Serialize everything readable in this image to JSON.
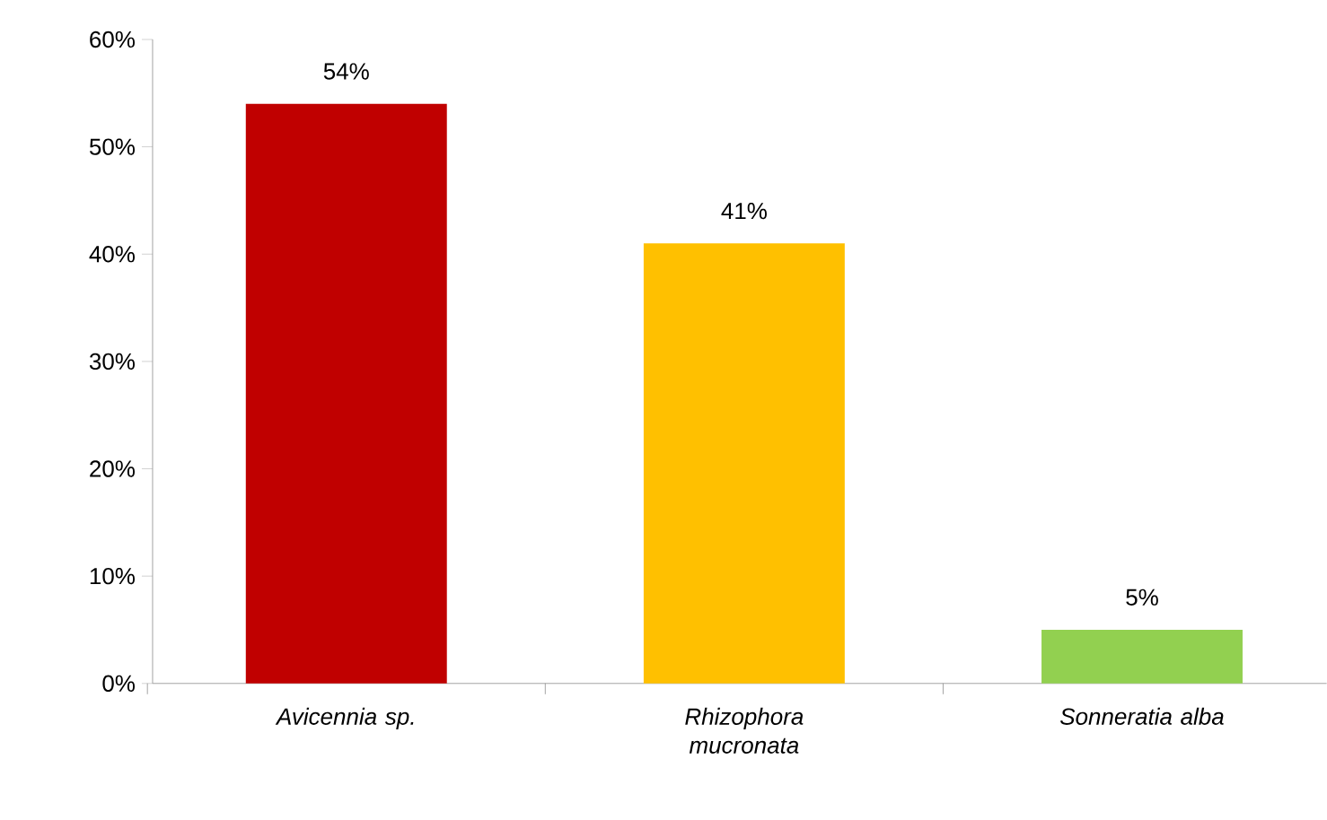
{
  "chart_data": {
    "type": "bar",
    "categories": [
      "Avicennia sp.",
      "Rhizophora mucronata",
      "Sonneratia alba"
    ],
    "values": [
      54,
      41,
      5
    ],
    "colors": [
      "#c00000",
      "#ffc000",
      "#92d050"
    ],
    "value_labels": [
      "54%",
      "41%",
      "5%"
    ],
    "ylim": [
      0,
      60
    ],
    "yticks": [
      {
        "value": 0,
        "label": "0%"
      },
      {
        "value": 10,
        "label": "10%"
      },
      {
        "value": 20,
        "label": "20%"
      },
      {
        "value": 30,
        "label": "30%"
      },
      {
        "value": 40,
        "label": "40%"
      },
      {
        "value": 50,
        "label": "50%"
      },
      {
        "value": 60,
        "label": "60%"
      }
    ]
  }
}
